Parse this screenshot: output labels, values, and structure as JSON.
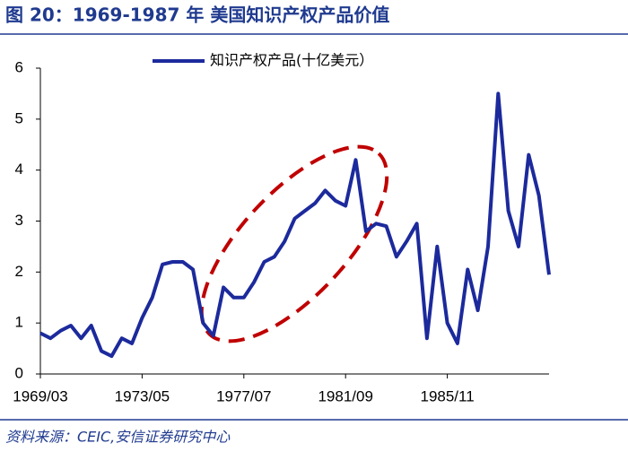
{
  "chart_data": {
    "type": "line",
    "title": "图 20：1969-1987 年 美国知识产权产品价值",
    "source": "资料来源：CEIC,安信证券研究中心",
    "categories": [
      "1969/03",
      null,
      null,
      null,
      null,
      null,
      null,
      null,
      null,
      null,
      "1973/05",
      null,
      null,
      null,
      null,
      null,
      null,
      null,
      null,
      null,
      "1977/07",
      null,
      null,
      null,
      null,
      null,
      null,
      null,
      null,
      null,
      "1981/09",
      null,
      null,
      null,
      null,
      null,
      null,
      null,
      null,
      null,
      "1985/11",
      null,
      null,
      null,
      null,
      null,
      null,
      null,
      null,
      null,
      null
    ],
    "series": [
      {
        "name": "知识产权产品(十亿美元）",
        "color": "#1c2a9c",
        "values": [
          0.8,
          0.7,
          0.85,
          0.95,
          0.7,
          0.95,
          0.45,
          0.35,
          0.7,
          0.6,
          1.1,
          1.5,
          2.15,
          2.2,
          2.2,
          2.05,
          1.0,
          0.75,
          1.7,
          1.5,
          1.5,
          1.8,
          2.2,
          2.3,
          2.6,
          3.05,
          3.2,
          3.35,
          3.6,
          3.4,
          3.3,
          4.2,
          2.8,
          2.95,
          2.9,
          2.3,
          2.6,
          2.95,
          0.7,
          2.5,
          1.0,
          0.6,
          2.05,
          1.25,
          2.5,
          5.5,
          3.2,
          2.5,
          4.3,
          3.5,
          1.95
        ]
      }
    ],
    "ylim": [
      0,
      6
    ],
    "yticks": [
      0,
      1,
      2,
      3,
      4,
      5,
      6
    ],
    "grid": false,
    "legend": "top"
  }
}
